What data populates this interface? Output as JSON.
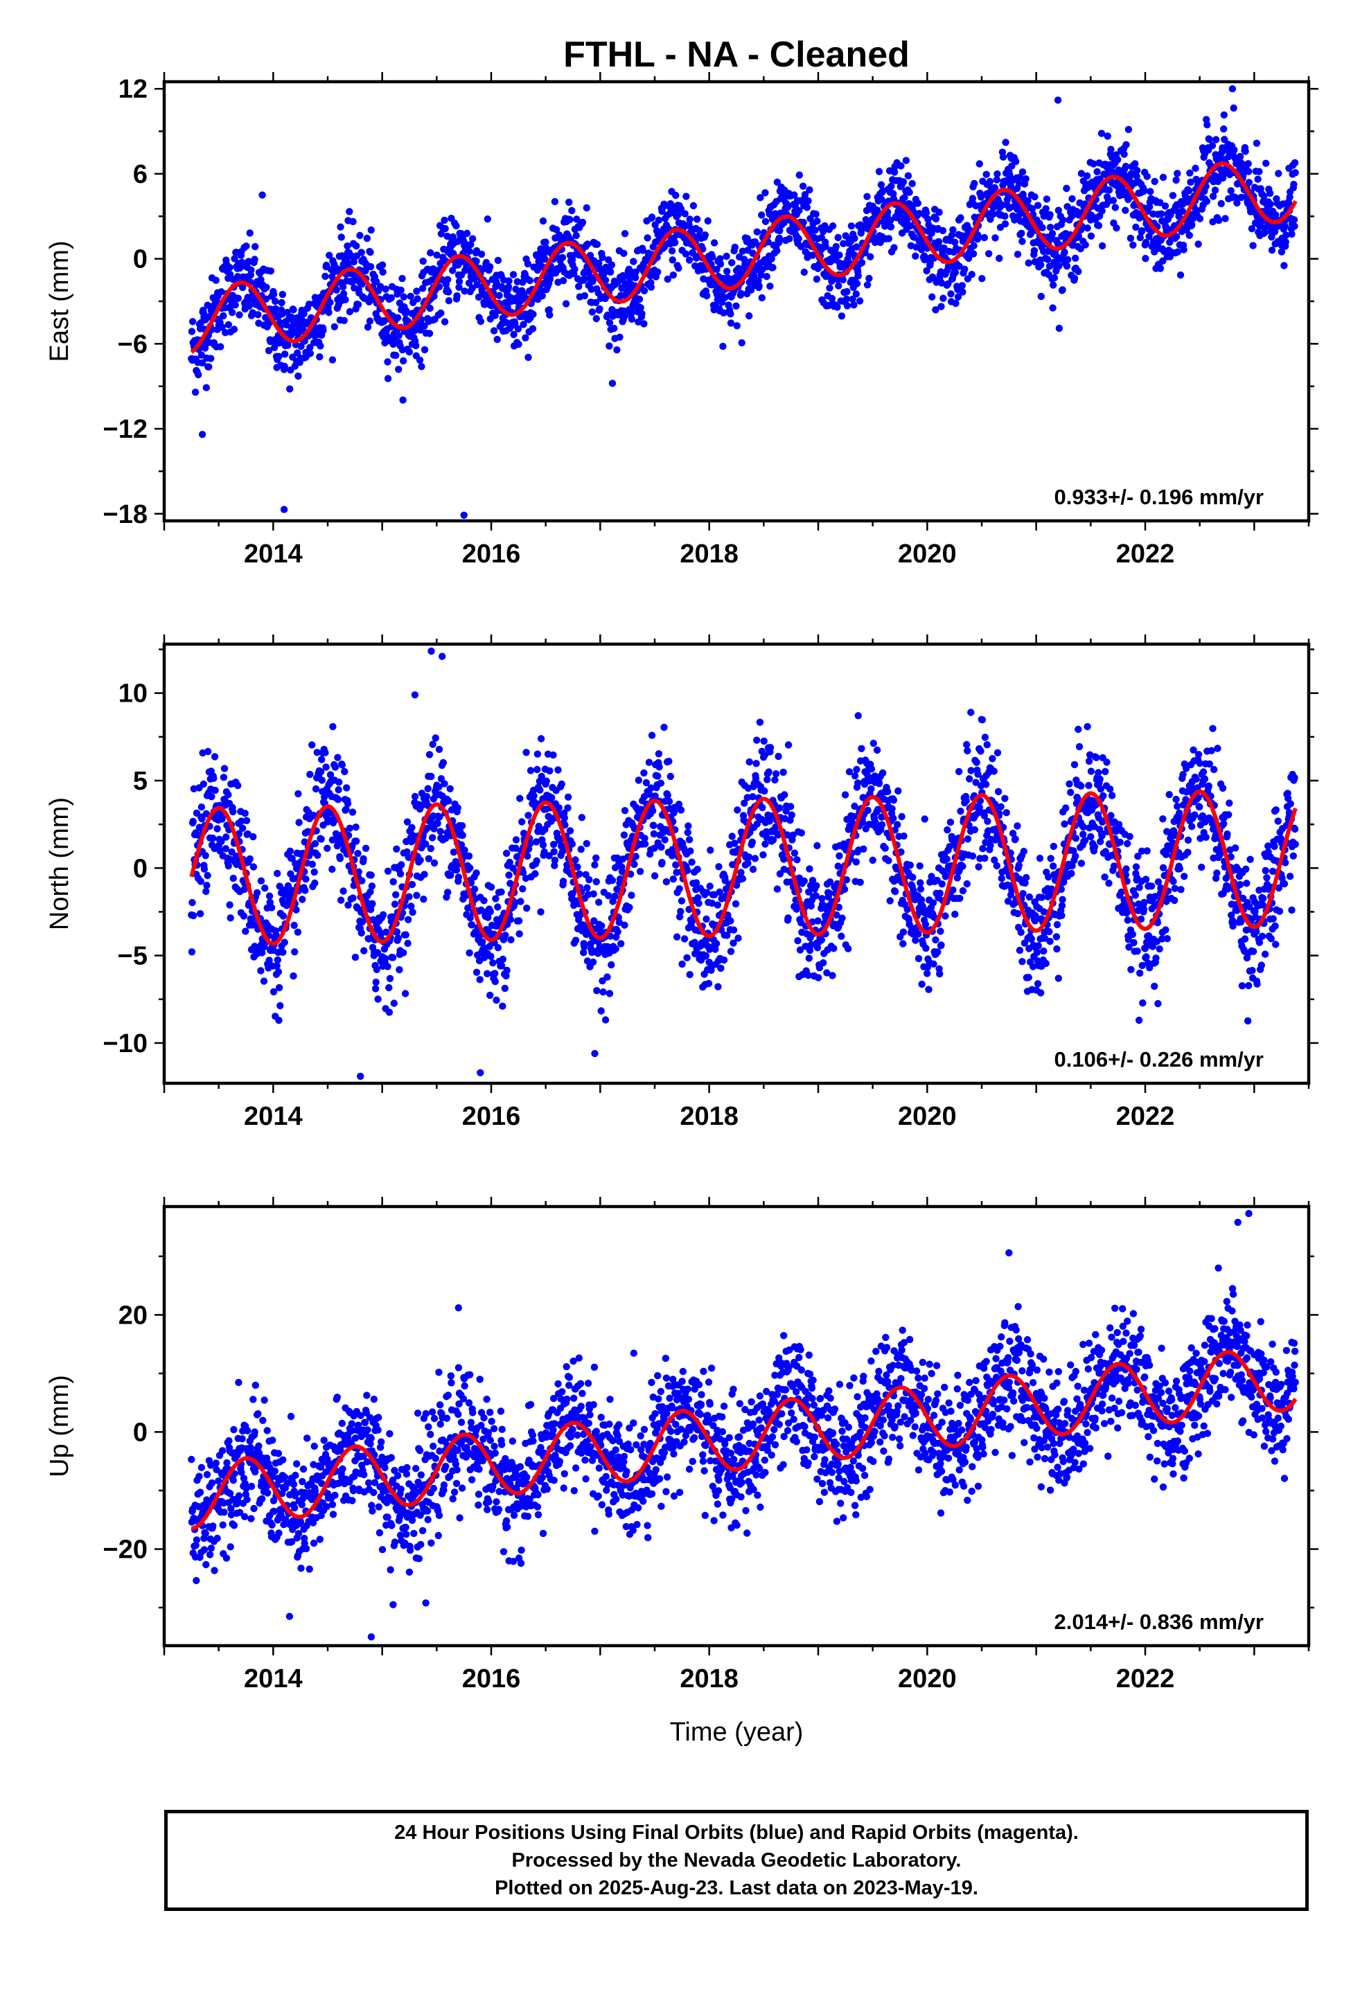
{
  "title": "FTHL  - NA - Cleaned",
  "xlabel": "Time (year)",
  "colors": {
    "final_orbits": "#0000ff",
    "fit_curve": "#ff0000",
    "background": "#ffffff",
    "axes": "#000000"
  },
  "footer": {
    "line1": "24 Hour Positions Using Final Orbits (blue) and Rapid Orbits (magenta).",
    "line2": "Processed by the Nevada Geodetic Laboratory.",
    "line3": "Plotted on 2025-Aug-23. Last data on 2023-May-19."
  },
  "chart_data": [
    {
      "type": "scatter",
      "ylabel": "East (mm)",
      "rate_label": "0.933+/- 0.196 mm/yr",
      "xlim": [
        2013.0,
        2023.5
      ],
      "ylim": [
        -18.5,
        12.5
      ],
      "yticks": [
        12,
        6,
        0,
        -6,
        -12,
        -18
      ],
      "xticks": [
        2014,
        2016,
        2018,
        2020,
        2022
      ],
      "grid": false,
      "series": [
        {
          "values_description": "daily positions",
          "points": "generated"
        },
        {
          "values_description": "fit",
          "points": "curve"
        }
      ],
      "fit": {
        "start_year": 2013.25,
        "end_year": 2023.38,
        "offset_mm": -4.4,
        "rate_mm_per_yr": 0.933,
        "annual_amplitude_mm": 2.3,
        "annual_phase_year": 2013.45,
        "scatter_mm": 1.5
      },
      "outliers": [
        [
          2013.35,
          -12.4
        ],
        [
          2014.1,
          -17.7
        ],
        [
          2015.75,
          -18.1
        ],
        [
          2013.9,
          4.5
        ],
        [
          2021.2,
          11.2
        ],
        [
          2022.8,
          12.0
        ]
      ]
    },
    {
      "type": "scatter",
      "ylabel": "North (mm)",
      "rate_label": "0.106+/- 0.226 mm/yr",
      "xlim": [
        2013.0,
        2023.5
      ],
      "ylim": [
        -12.3,
        12.8
      ],
      "yticks": [
        10,
        5,
        0,
        -5,
        -10
      ],
      "xticks": [
        2014,
        2016,
        2018,
        2020,
        2022
      ],
      "grid": false,
      "series": [
        {
          "values_description": "daily positions",
          "points": "generated"
        },
        {
          "values_description": "fit",
          "points": "curve"
        }
      ],
      "fit": {
        "start_year": 2013.25,
        "end_year": 2023.38,
        "offset_mm": -0.5,
        "rate_mm_per_yr": 0.106,
        "annual_amplitude_mm": 3.9,
        "annual_phase_year": 2013.25,
        "scatter_mm": 1.8
      },
      "outliers": [
        [
          2015.45,
          12.4
        ],
        [
          2015.55,
          12.1
        ],
        [
          2015.3,
          9.9
        ],
        [
          2014.8,
          -11.9
        ],
        [
          2015.9,
          -11.7
        ],
        [
          2016.95,
          -10.6
        ],
        [
          2020.4,
          8.9
        ]
      ]
    },
    {
      "type": "scatter",
      "ylabel": "Up (mm)",
      "rate_label": "2.014+/- 0.836 mm/yr",
      "xlim": [
        2013.0,
        2023.5
      ],
      "ylim": [
        -36.5,
        38.5
      ],
      "yticks": [
        20,
        0,
        -20
      ],
      "xticks": [
        2014,
        2016,
        2018,
        2020,
        2022
      ],
      "grid": false,
      "series": [
        {
          "values_description": "daily positions",
          "points": "generated"
        },
        {
          "values_description": "fit",
          "points": "curve"
        }
      ],
      "fit": {
        "start_year": 2013.25,
        "end_year": 2023.38,
        "offset_mm": -11.0,
        "rate_mm_per_yr": 2.014,
        "annual_amplitude_mm": 5.5,
        "annual_phase_year": 2013.5,
        "scatter_mm": 5.0
      },
      "outliers": [
        [
          2014.15,
          -31.5
        ],
        [
          2014.9,
          -35.0
        ],
        [
          2015.1,
          -29.5
        ],
        [
          2015.4,
          -29.2
        ],
        [
          2020.75,
          30.6
        ],
        [
          2022.85,
          35.8
        ],
        [
          2022.95,
          37.3
        ],
        [
          2015.7,
          21.2
        ]
      ]
    }
  ]
}
